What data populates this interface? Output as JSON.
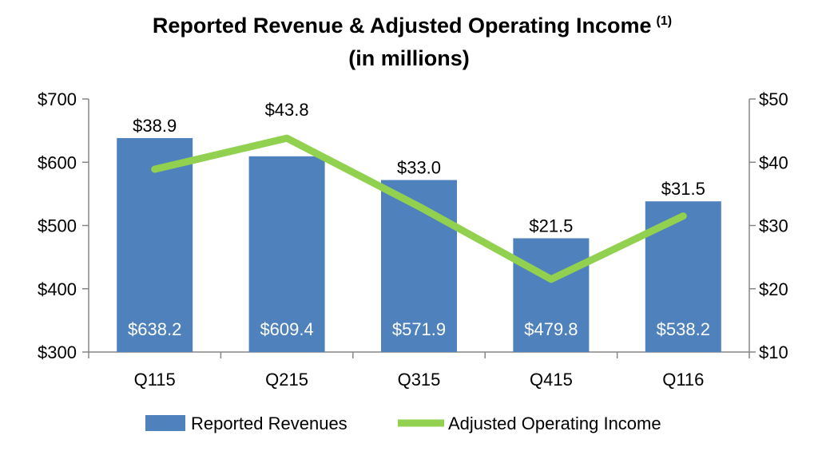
{
  "chart_data": {
    "type": "bar",
    "title": "Reported Revenue & Adjusted Operating Income",
    "title_superscript": "(1)",
    "subtitle": "(in millions)",
    "categories": [
      "Q115",
      "Q215",
      "Q315",
      "Q415",
      "Q116"
    ],
    "series": [
      {
        "name": "Reported Revenues",
        "type": "bar",
        "axis": "left",
        "color": "#4F81BD",
        "values": [
          638.2,
          609.4,
          571.9,
          479.8,
          538.2
        ],
        "labels": [
          "$638.2",
          "$609.4",
          "$571.9",
          "$479.8",
          "$538.2"
        ]
      },
      {
        "name": "Adjusted Operating Income",
        "type": "line",
        "axis": "right",
        "color": "#92D050",
        "values": [
          38.9,
          43.8,
          33.0,
          21.5,
          31.5
        ],
        "labels": [
          "$38.9",
          "$43.8",
          "$33.0",
          "$21.5",
          "$31.5"
        ]
      }
    ],
    "y_left": {
      "min": 300,
      "max": 700,
      "ticks": [
        300,
        400,
        500,
        600,
        700
      ],
      "tick_labels": [
        "$300",
        "$400",
        "$500",
        "$600",
        "$700"
      ]
    },
    "y_right": {
      "min": 10,
      "max": 50,
      "ticks": [
        10,
        20,
        30,
        40,
        50
      ],
      "tick_labels": [
        "$10",
        "$20",
        "$30",
        "$40",
        "$50"
      ]
    },
    "grid": false,
    "legend_position": "bottom"
  }
}
